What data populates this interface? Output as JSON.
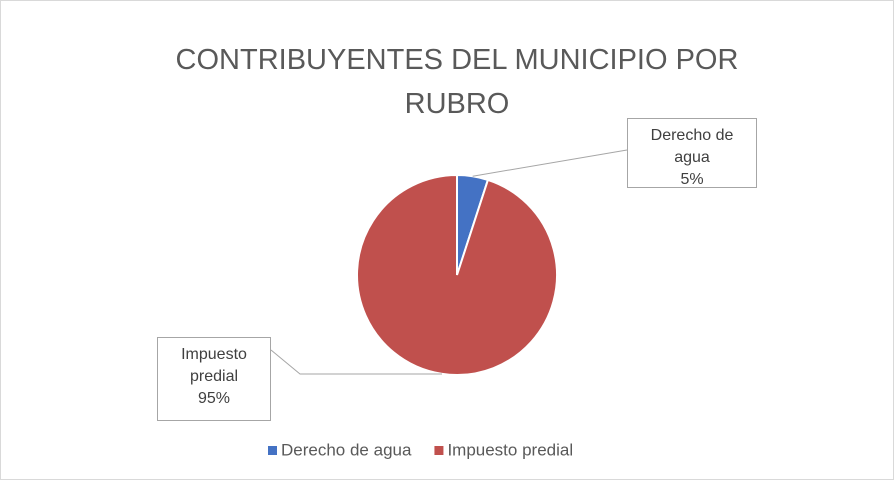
{
  "chart_data": {
    "type": "pie",
    "title": "CONTRIBUYENTES DEL MUNICIPIO POR RUBRO",
    "categories": [
      "Derecho de agua",
      "Impuesto predial"
    ],
    "values": [
      5,
      95
    ],
    "value_labels": [
      "5%",
      "95%"
    ],
    "colors": [
      "#4472c4",
      "#c0504d"
    ],
    "legend": "bottom"
  }
}
